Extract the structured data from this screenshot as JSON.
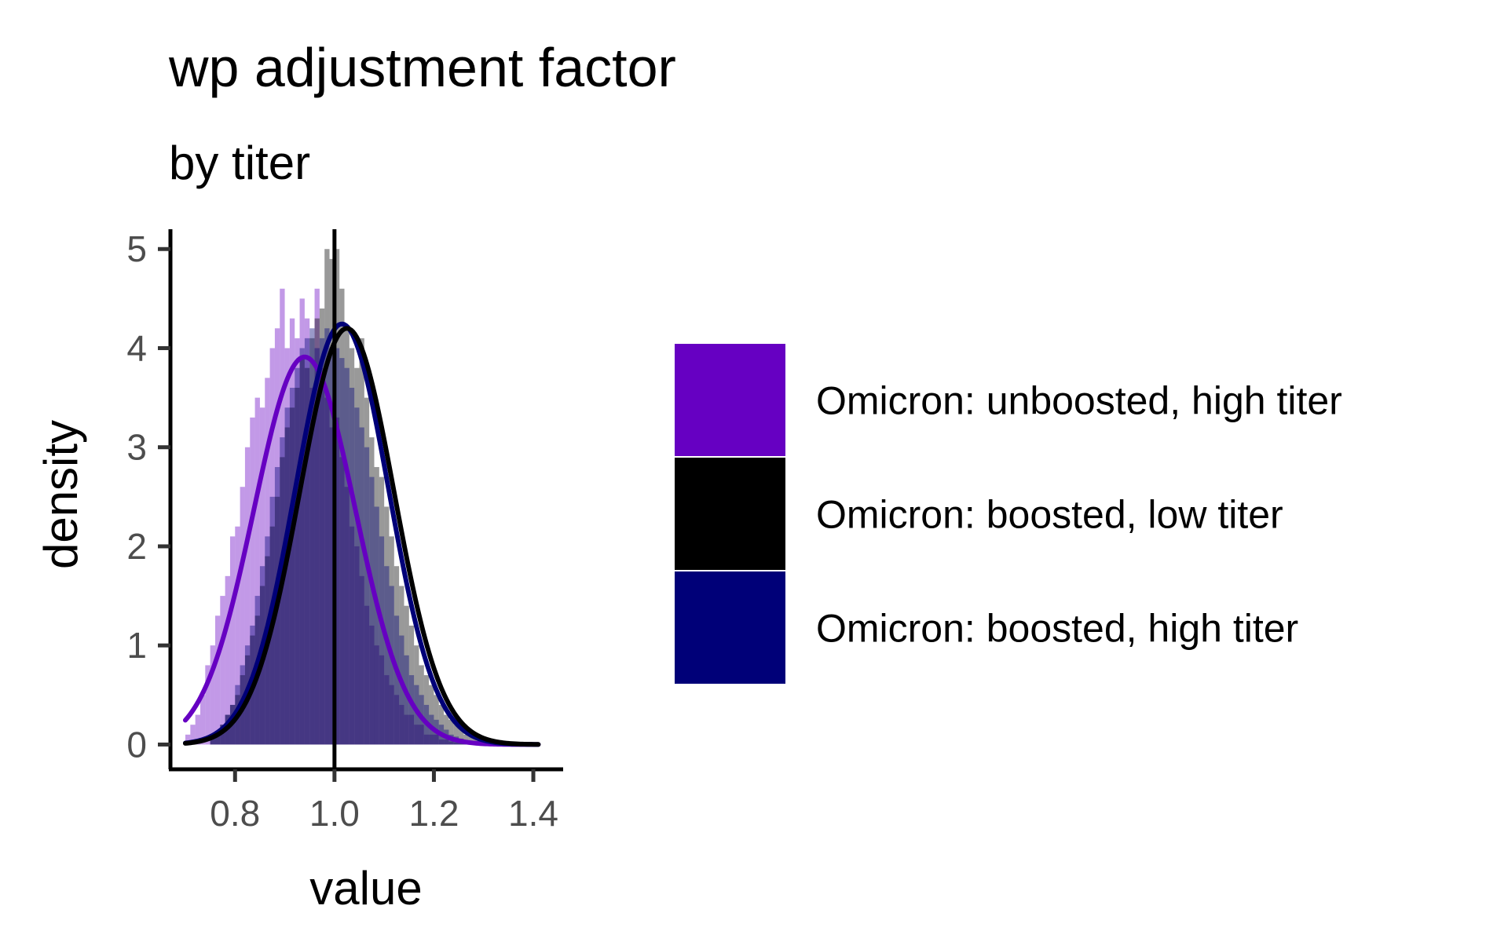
{
  "chart_data": {
    "type": "histogram-density",
    "title": "wp adjustment factor",
    "subtitle": "by titer",
    "xlabel": "value",
    "ylabel": "density",
    "xlim": [
      0.67,
      1.46
    ],
    "ylim": [
      -0.25,
      5.2
    ],
    "x_ticks": [
      0.8,
      1.0,
      1.2,
      1.4
    ],
    "x_tick_labels": [
      "0.8",
      "1.0",
      "1.2",
      "1.4"
    ],
    "y_ticks": [
      0,
      1,
      2,
      3,
      4,
      5
    ],
    "y_tick_labels": [
      "0",
      "1",
      "2",
      "3",
      "4",
      "5"
    ],
    "vline_x": 1.0,
    "grid": false,
    "legend_position": "right",
    "series": [
      {
        "name": "Omicron: unboosted, high titer",
        "color": "#6600C2",
        "hist_alpha": 0.4,
        "density": {
          "mean": 0.94,
          "sd": 0.102,
          "x_range": [
            0.7,
            1.41
          ]
        },
        "histogram": {
          "bin_start": 0.7,
          "bin_width": 0.01,
          "counts": [
            0.1,
            0.2,
            0.3,
            0.5,
            0.8,
            1.0,
            1.3,
            1.5,
            1.7,
            2.1,
            2.2,
            2.6,
            3.0,
            3.3,
            3.5,
            3.4,
            3.7,
            4.0,
            4.2,
            4.6,
            4.0,
            4.3,
            4.1,
            4.5,
            4.3,
            3.6,
            4.6,
            3.8,
            3.5,
            3.2,
            3.3,
            2.9,
            2.6,
            2.2,
            2.0,
            1.7,
            1.4,
            1.2,
            1.0,
            0.9,
            0.7,
            0.6,
            0.5,
            0.4,
            0.3,
            0.3,
            0.2,
            0.2,
            0.1,
            0.1,
            0.1,
            0.05,
            0.05,
            0.03,
            0.02,
            0.02,
            0.01,
            0.01,
            0.01,
            0.0,
            0.0,
            0.0,
            0.0,
            0.0,
            0.0,
            0.0,
            0.0,
            0.0,
            0.0,
            0.0,
            0.0
          ]
        }
      },
      {
        "name": "Omicron: boosted, low titer",
        "color": "#000000",
        "hist_alpha": 0.4,
        "density": {
          "mean": 1.025,
          "sd": 0.095,
          "x_range": [
            0.7,
            1.41
          ]
        },
        "histogram": {
          "bin_start": 0.7,
          "bin_width": 0.01,
          "counts": [
            0.0,
            0.0,
            0.0,
            0.0,
            0.0,
            0.1,
            0.1,
            0.2,
            0.3,
            0.4,
            0.5,
            0.7,
            0.9,
            1.1,
            1.3,
            1.6,
            1.9,
            2.2,
            2.5,
            2.9,
            3.2,
            3.4,
            3.6,
            3.9,
            3.8,
            4.1,
            4.3,
            4.4,
            5.0,
            4.9,
            5.0,
            4.6,
            4.2,
            4.0,
            3.8,
            4.1,
            3.5,
            3.1,
            2.8,
            2.7,
            2.4,
            2.1,
            1.8,
            1.6,
            1.4,
            1.2,
            1.0,
            0.8,
            0.7,
            0.6,
            0.5,
            0.4,
            0.3,
            0.25,
            0.2,
            0.15,
            0.1,
            0.1,
            0.08,
            0.05,
            0.04,
            0.03,
            0.02,
            0.02,
            0.01,
            0.01,
            0.01,
            0.01,
            0.0,
            0.0,
            0.0
          ]
        }
      },
      {
        "name": "Omicron: boosted, high titer",
        "color": "#000078",
        "hist_alpha": 0.4,
        "density": {
          "mean": 1.015,
          "sd": 0.094,
          "x_range": [
            0.7,
            1.41
          ]
        },
        "histogram": {
          "bin_start": 0.7,
          "bin_width": 0.01,
          "counts": [
            0.0,
            0.0,
            0.0,
            0.0,
            0.0,
            0.1,
            0.1,
            0.2,
            0.3,
            0.4,
            0.6,
            0.8,
            1.0,
            1.2,
            1.5,
            1.8,
            2.1,
            2.5,
            2.8,
            3.1,
            3.4,
            3.6,
            3.8,
            4.0,
            4.1,
            4.2,
            4.0,
            4.1,
            4.2,
            4.0,
            4.0,
            3.9,
            3.8,
            3.6,
            3.4,
            3.2,
            3.0,
            2.7,
            2.4,
            2.1,
            1.8,
            1.6,
            1.3,
            1.1,
            0.9,
            0.7,
            0.6,
            0.5,
            0.4,
            0.3,
            0.25,
            0.2,
            0.15,
            0.1,
            0.08,
            0.06,
            0.04,
            0.03,
            0.02,
            0.02,
            0.01,
            0.01,
            0.0,
            0.0,
            0.0,
            0.0,
            0.0,
            0.0,
            0.0,
            0.0,
            0.0
          ]
        }
      }
    ]
  }
}
